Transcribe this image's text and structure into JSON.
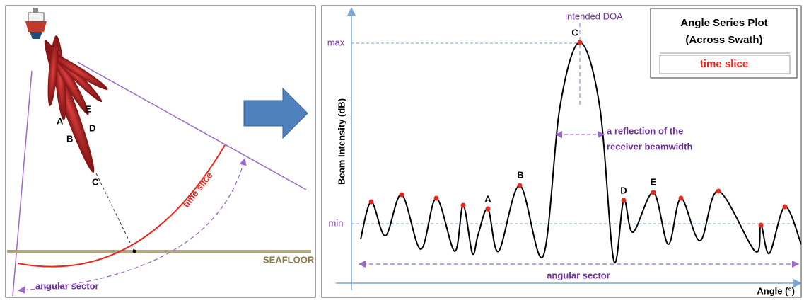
{
  "left_panel": {
    "beam_labels": [
      "A",
      "B",
      "D",
      "E"
    ],
    "footprint_label": "C",
    "time_slice": "time slice",
    "seafloor": "SEAFLOOR",
    "angular_sector": "angular sector"
  },
  "right_panel": {
    "title_lines": [
      "Angle Series Plot",
      "(Across Swath)"
    ],
    "subtitle": "time slice",
    "intended_doa": "intended  DOA",
    "y_axis": "Beam Intensity (dB)",
    "x_axis": "Angle (°)",
    "max": "max",
    "min": "min",
    "peak_labels": [
      "A",
      "B",
      "C",
      "D",
      "E"
    ],
    "beamwidth_note": [
      "a reflection of the",
      "receiver beamwidth"
    ],
    "angular_sector": "angular sector"
  }
}
